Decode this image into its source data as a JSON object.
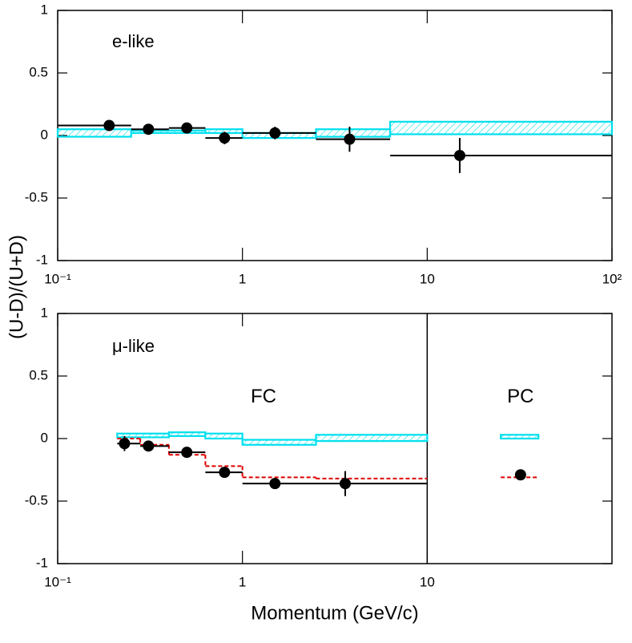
{
  "chart_data": [
    {
      "type": "step",
      "label": "e-like",
      "xscale": "log",
      "xlim": [
        0.1,
        100
      ],
      "ylim": [
        -1,
        1
      ],
      "ylabel": "(U-D)/(U+D)",
      "xticks": [
        {
          "value": 0.1,
          "label": "10⁻¹"
        },
        1,
        10,
        {
          "value": 100,
          "label": "10²"
        }
      ],
      "yticks": [
        1,
        0.5,
        0,
        -0.5,
        -1
      ],
      "series": [
        {
          "kind": "band",
          "color": "#00e0ee",
          "bins": [
            0.1,
            0.25,
            0.63,
            1.0,
            2.5,
            6.3,
            100
          ],
          "low": [
            -0.01,
            0.02,
            0.02,
            -0.02,
            -0.01,
            0.01
          ],
          "high": [
            0.05,
            0.04,
            0.05,
            0.02,
            0.05,
            0.11
          ]
        },
        {
          "kind": "points",
          "color": "#000000",
          "x": [
            0.19,
            0.31,
            0.5,
            0.8,
            1.5,
            3.8,
            15
          ],
          "values": [
            0.08,
            0.05,
            0.06,
            -0.02,
            0.02,
            -0.03,
            -0.16
          ],
          "errors": [
            0.04,
            0.04,
            0.04,
            0.05,
            0.05,
            0.1,
            0.14
          ],
          "bins": [
            0.1,
            0.25,
            0.4,
            0.63,
            1.0,
            2.5,
            6.3,
            100
          ]
        }
      ]
    },
    {
      "type": "step",
      "label": "μ-like",
      "xscale": "log",
      "xlim": [
        0.1,
        100
      ],
      "ylim": [
        -1,
        1
      ],
      "xlabel": "Momentum (GeV/c)",
      "xticks": [
        {
          "value": 0.1,
          "label": "10⁻¹"
        },
        1,
        10
      ],
      "yticks": [
        1,
        0.5,
        0,
        -0.5,
        -1
      ],
      "divider": 10,
      "annotations": [
        {
          "text": "FC",
          "x": 1.3,
          "y": 0.33
        },
        {
          "text": "PC",
          "x": 32,
          "y": 0.33
        }
      ],
      "series": [
        {
          "kind": "band",
          "color": "#00e0ee",
          "bins": [
            0.21,
            0.4,
            0.63,
            1.0,
            2.5,
            10
          ],
          "low": [
            0.01,
            0.02,
            0.0,
            -0.05,
            -0.02
          ],
          "high": [
            0.04,
            0.05,
            0.04,
            -0.01,
            0.03
          ]
        },
        {
          "kind": "line",
          "color": "#e00000",
          "dashed": true,
          "bins": [
            0.21,
            0.28,
            0.4,
            0.63,
            1.0,
            2.5,
            10
          ],
          "values": [
            0.0,
            -0.05,
            -0.13,
            -0.22,
            -0.31,
            -0.32
          ]
        },
        {
          "kind": "points",
          "color": "#000000",
          "x": [
            0.23,
            0.31,
            0.5,
            0.8,
            1.5,
            3.6
          ],
          "values": [
            -0.04,
            -0.06,
            -0.11,
            -0.27,
            -0.36,
            -0.36
          ],
          "errors": [
            0.06,
            0.04,
            0.04,
            0.04,
            0.04,
            0.1
          ],
          "bins": [
            0.21,
            0.28,
            0.4,
            0.63,
            1.0,
            2.5,
            10
          ]
        },
        {
          "kind": "band",
          "color": "#00e0ee",
          "bins": [
            25,
            40
          ],
          "low": [
            0.0
          ],
          "high": [
            0.03
          ]
        },
        {
          "kind": "line",
          "color": "#e00000",
          "dashed": true,
          "bins": [
            25,
            40
          ],
          "values": [
            -0.31
          ]
        },
        {
          "kind": "points",
          "color": "#000000",
          "x": [
            32
          ],
          "values": [
            -0.29
          ],
          "errors": [
            0.04
          ]
        }
      ]
    }
  ]
}
